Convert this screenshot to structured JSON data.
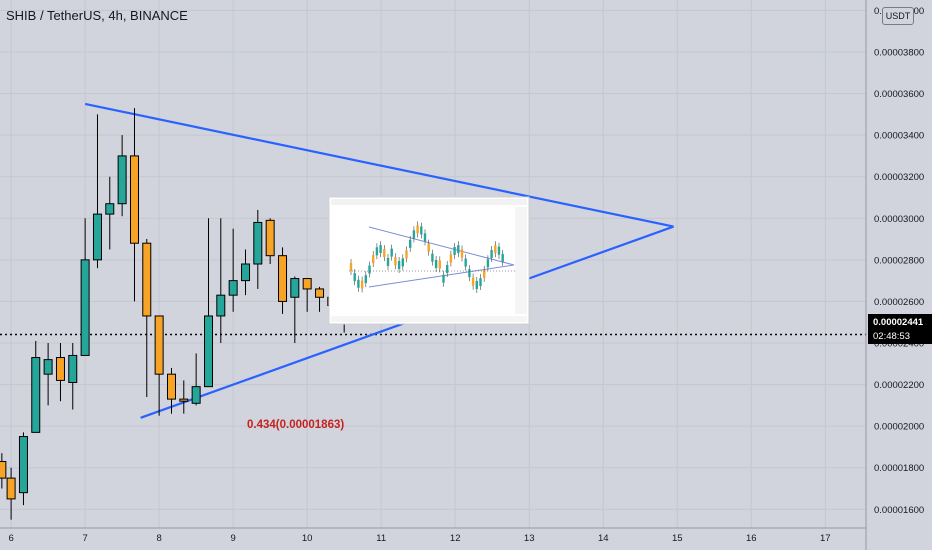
{
  "header": {
    "symbol_title": "SHIB / TetherUS, 4h, BINANCE",
    "currency_badge": "USDT"
  },
  "price_tag": {
    "price": "0.00002441",
    "countdown": "02:48:53"
  },
  "annotation_text": "0.434(0.00001863)",
  "colors": {
    "background": "#d1d4dc",
    "bull": "#26a69a",
    "bear": "#f7a325",
    "trendline": "#2962ff",
    "grid": "#c4c7cf",
    "annotation": "#c5221f"
  },
  "chart_data": {
    "type": "candlestick",
    "title": "SHIB / TetherUS, 4h, BINANCE",
    "x_ticks": [
      "6",
      "7",
      "8",
      "9",
      "10",
      "11",
      "12",
      "13",
      "14",
      "15",
      "16",
      "17"
    ],
    "y_ticks": [
      "0.00001600",
      "0.00001800",
      "0.00002000",
      "0.00002200",
      "0.00002400",
      "0.00002600",
      "0.00002800",
      "0.00003000",
      "0.00003200",
      "0.00003400",
      "0.00003600",
      "0.00003800",
      "0.00004000"
    ],
    "ylim": [
      1.51e-05,
      4.05e-05
    ],
    "xlim": [
      5.85,
      17.55
    ],
    "last_price": 2.441e-05,
    "grid": true,
    "candles": [
      {
        "t": 5.875,
        "o": 1.83e-05,
        "h": 1.87e-05,
        "l": 1.7e-05,
        "c": 1.75e-05
      },
      {
        "t": 6.0,
        "o": 1.75e-05,
        "h": 1.8e-05,
        "l": 1.55e-05,
        "c": 1.65e-05
      },
      {
        "t": 6.167,
        "o": 1.68e-05,
        "h": 1.97e-05,
        "l": 1.62e-05,
        "c": 1.95e-05
      },
      {
        "t": 6.333,
        "o": 1.97e-05,
        "h": 2.41e-05,
        "l": 1.97e-05,
        "c": 2.33e-05
      },
      {
        "t": 6.5,
        "o": 2.25e-05,
        "h": 2.4e-05,
        "l": 2.1e-05,
        "c": 2.32e-05
      },
      {
        "t": 6.667,
        "o": 2.33e-05,
        "h": 2.4e-05,
        "l": 2.12e-05,
        "c": 2.22e-05
      },
      {
        "t": 6.833,
        "o": 2.21e-05,
        "h": 2.4e-05,
        "l": 2.08e-05,
        "c": 2.34e-05
      },
      {
        "t": 7.0,
        "o": 2.34e-05,
        "h": 3e-05,
        "l": 2.34e-05,
        "c": 2.8e-05
      },
      {
        "t": 7.167,
        "o": 2.8e-05,
        "h": 3.5e-05,
        "l": 2.76e-05,
        "c": 3.02e-05
      },
      {
        "t": 7.333,
        "o": 3.02e-05,
        "h": 3.2e-05,
        "l": 2.85e-05,
        "c": 3.07e-05
      },
      {
        "t": 7.5,
        "o": 3.07e-05,
        "h": 3.4e-05,
        "l": 3.01e-05,
        "c": 3.3e-05
      },
      {
        "t": 7.667,
        "o": 3.3e-05,
        "h": 3.53e-05,
        "l": 2.6e-05,
        "c": 2.88e-05
      },
      {
        "t": 7.833,
        "o": 2.88e-05,
        "h": 2.9e-05,
        "l": 2.14e-05,
        "c": 2.53e-05
      },
      {
        "t": 8.0,
        "o": 2.53e-05,
        "h": 2.53e-05,
        "l": 2.05e-05,
        "c": 2.25e-05
      },
      {
        "t": 8.167,
        "o": 2.25e-05,
        "h": 2.28e-05,
        "l": 2.06e-05,
        "c": 2.13e-05
      },
      {
        "t": 8.333,
        "o": 2.13e-05,
        "h": 2.22e-05,
        "l": 2.06e-05,
        "c": 2.12e-05
      },
      {
        "t": 8.5,
        "o": 2.11e-05,
        "h": 2.35e-05,
        "l": 2.1e-05,
        "c": 2.19e-05
      },
      {
        "t": 8.667,
        "o": 2.19e-05,
        "h": 3e-05,
        "l": 2.19e-05,
        "c": 2.53e-05
      },
      {
        "t": 8.833,
        "o": 2.53e-05,
        "h": 3e-05,
        "l": 2.4e-05,
        "c": 2.63e-05
      },
      {
        "t": 9.0,
        "o": 2.63e-05,
        "h": 2.95e-05,
        "l": 2.55e-05,
        "c": 2.7e-05
      },
      {
        "t": 9.167,
        "o": 2.7e-05,
        "h": 2.85e-05,
        "l": 2.63e-05,
        "c": 2.78e-05
      },
      {
        "t": 9.333,
        "o": 2.78e-05,
        "h": 3.04e-05,
        "l": 2.66e-05,
        "c": 2.98e-05
      },
      {
        "t": 9.5,
        "o": 2.99e-05,
        "h": 3e-05,
        "l": 2.78e-05,
        "c": 2.82e-05
      },
      {
        "t": 9.667,
        "o": 2.82e-05,
        "h": 2.86e-05,
        "l": 2.54e-05,
        "c": 2.6e-05
      },
      {
        "t": 9.833,
        "o": 2.62e-05,
        "h": 2.72e-05,
        "l": 2.4e-05,
        "c": 2.71e-05
      },
      {
        "t": 10.0,
        "o": 2.71e-05,
        "h": 2.71e-05,
        "l": 2.55e-05,
        "c": 2.66e-05
      },
      {
        "t": 10.167,
        "o": 2.66e-05,
        "h": 2.67e-05,
        "l": 2.55e-05,
        "c": 2.62e-05
      },
      {
        "t": 10.333,
        "o": 2.62e-05,
        "h": 2.64e-05,
        "l": 2.53e-05,
        "c": 2.58e-05
      },
      {
        "t": 10.5,
        "o": 2.58e-05,
        "h": 2.62e-05,
        "l": 2.45e-05,
        "c": 2.54e-05
      }
    ],
    "trendlines": [
      {
        "from": [
          7.0,
          3.55e-05
        ],
        "to": [
          14.95,
          2.96e-05
        ]
      },
      {
        "from": [
          7.75,
          2.04e-05
        ],
        "to": [
          14.95,
          2.96e-05
        ]
      }
    ],
    "annotations": [
      {
        "t": 8.0,
        "price": 1.87e-05,
        "text": "0.434(0.00001863)"
      }
    ]
  }
}
